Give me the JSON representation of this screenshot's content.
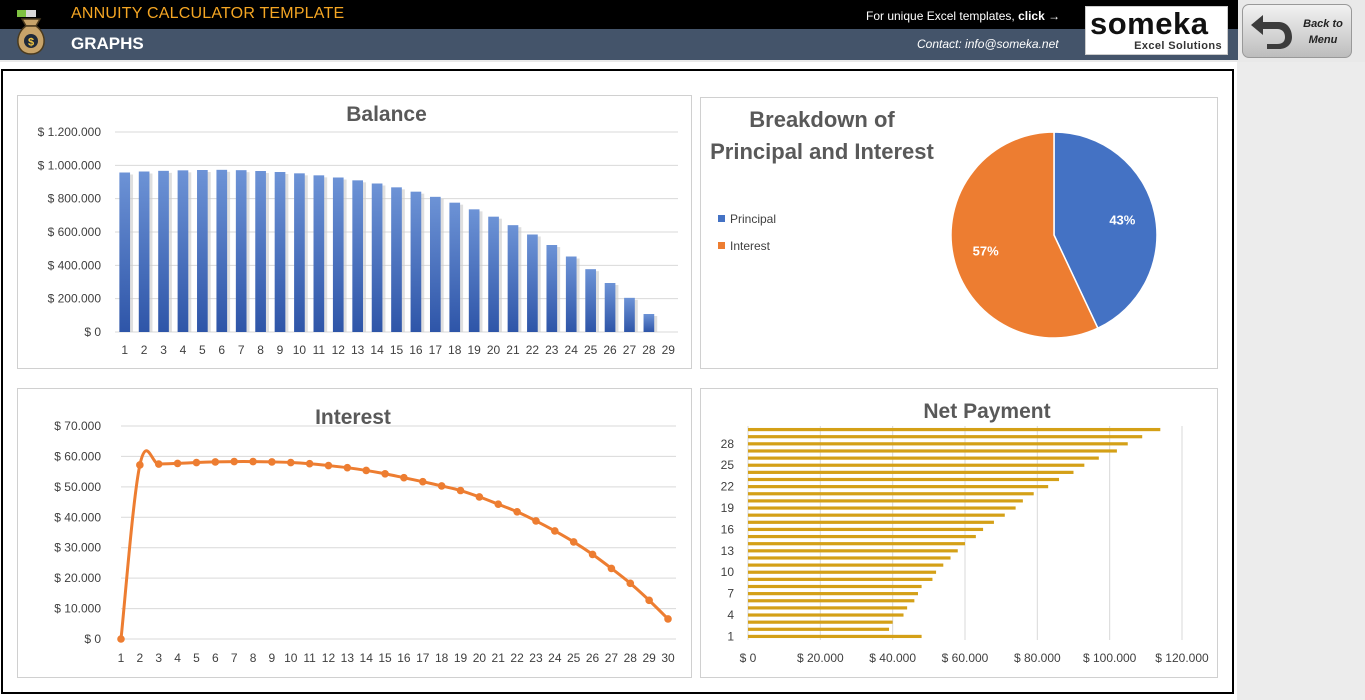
{
  "header": {
    "app_title": "ANNUITY CALCULATOR TEMPLATE",
    "page_title": "GRAPHS",
    "promo_text": "For unique Excel templates,",
    "promo_click": "click →",
    "contact": "Contact: info@someka.net",
    "logo_name": "someka",
    "logo_tagline": "Excel Solutions",
    "back_button": "Back to Menu"
  },
  "colors": {
    "header_black": "#000000",
    "header_slate": "#44546a",
    "accent_orange": "#f5a623",
    "principal_blue": "#4472c4",
    "interest_orange": "#ed7d31",
    "net_payment_gold": "#d4a017"
  },
  "icons": {
    "app": "money-bag-icon",
    "back": "back-arrow-icon"
  },
  "chart_data": [
    {
      "type": "bar",
      "title": "Balance",
      "categories": [
        "1",
        "2",
        "3",
        "4",
        "5",
        "6",
        "7",
        "8",
        "9",
        "10",
        "11",
        "12",
        "13",
        "14",
        "15",
        "16",
        "17",
        "18",
        "19",
        "20",
        "21",
        "22",
        "23",
        "24",
        "25",
        "26",
        "27",
        "28",
        "29"
      ],
      "values": [
        957000,
        963000,
        967000,
        970000,
        972000,
        973000,
        971000,
        966000,
        960000,
        952000,
        940000,
        927000,
        910000,
        891000,
        868000,
        842000,
        811000,
        776000,
        736000,
        692000,
        641000,
        585000,
        522000,
        453000,
        377000,
        294000,
        205000,
        108000,
        0
      ],
      "ylim": [
        0,
        1200000
      ],
      "yticks": [
        "$ 0",
        "$ 200.000",
        "$ 400.000",
        "$ 600.000",
        "$ 800.000",
        "$ 1.000.000",
        "$ 1.200.000"
      ],
      "grid": true
    },
    {
      "type": "pie",
      "title": "Breakdown of Principal and Interest",
      "labels": [
        "Principal",
        "Interest"
      ],
      "values": [
        43,
        57
      ],
      "value_labels": [
        "43%",
        "57%"
      ],
      "legend": "left"
    },
    {
      "type": "line",
      "title": "Interest",
      "categories": [
        "1",
        "2",
        "3",
        "4",
        "5",
        "6",
        "7",
        "8",
        "9",
        "10",
        "11",
        "12",
        "13",
        "14",
        "15",
        "16",
        "17",
        "18",
        "19",
        "20",
        "21",
        "22",
        "23",
        "24",
        "25",
        "26",
        "27",
        "28",
        "29",
        "30"
      ],
      "values": [
        0,
        57200,
        57500,
        57700,
        58000,
        58200,
        58300,
        58300,
        58200,
        58000,
        57600,
        57000,
        56300,
        55400,
        54300,
        53000,
        51700,
        50300,
        48800,
        46700,
        44300,
        41800,
        38800,
        35500,
        31900,
        27800,
        23200,
        18300,
        12700,
        6600
      ],
      "ylim": [
        0,
        70000
      ],
      "yticks": [
        "$ 0",
        "$ 10.000",
        "$ 20.000",
        "$ 30.000",
        "$ 40.000",
        "$ 50.000",
        "$ 60.000",
        "$ 70.000"
      ],
      "grid": true
    },
    {
      "type": "bar",
      "orientation": "horizontal",
      "title": "Net Payment",
      "categories": [
        "1",
        "2",
        "3",
        "4",
        "5",
        "6",
        "7",
        "8",
        "9",
        "10",
        "11",
        "12",
        "13",
        "14",
        "15",
        "16",
        "17",
        "18",
        "19",
        "20",
        "21",
        "22",
        "23",
        "24",
        "25",
        "26",
        "27",
        "28",
        "29",
        "30"
      ],
      "values": [
        48000,
        39000,
        40000,
        43000,
        44000,
        46000,
        47000,
        48000,
        51000,
        52000,
        54000,
        56000,
        58000,
        60000,
        63000,
        65000,
        68000,
        71000,
        74000,
        76000,
        79000,
        83000,
        86000,
        90000,
        93000,
        97000,
        102000,
        105000,
        109000,
        114000
      ],
      "yticks": [
        "1",
        "4",
        "7",
        "10",
        "13",
        "16",
        "19",
        "22",
        "25",
        "28"
      ],
      "xlim": [
        0,
        120000
      ],
      "xticks": [
        "$ 0",
        "$ 20.000",
        "$ 40.000",
        "$ 60.000",
        "$ 80.000",
        "$ 100.000",
        "$ 120.000"
      ],
      "grid": true
    }
  ]
}
